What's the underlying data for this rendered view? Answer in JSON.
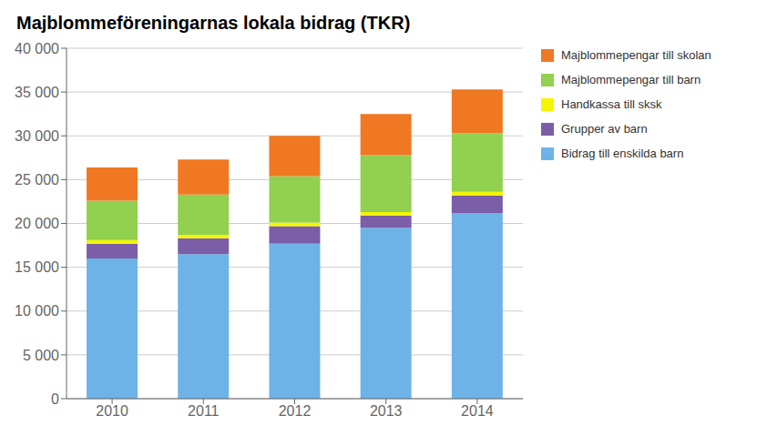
{
  "chart_data": {
    "type": "bar",
    "stacked": true,
    "title": "Majblommeföreningarnas lokala bidrag (TKR)",
    "categories": [
      "2010",
      "2011",
      "2012",
      "2013",
      "2014"
    ],
    "series": [
      {
        "name": "Bidrag till enskilda barn",
        "color": "#6db3e8",
        "values": [
          16000,
          16500,
          17700,
          19500,
          21200
        ]
      },
      {
        "name": "Grupper av barn",
        "color": "#7b5ea7",
        "values": [
          1700,
          1800,
          2000,
          1400,
          2000
        ]
      },
      {
        "name": "Handkassa till sksk",
        "color": "#f5f500",
        "values": [
          400,
          400,
          400,
          400,
          400
        ]
      },
      {
        "name": "Majblommepengar till barn",
        "color": "#92d050",
        "values": [
          4500,
          4600,
          5300,
          6500,
          6700
        ]
      },
      {
        "name": "Majblommepengar till skolan",
        "color": "#f07823",
        "values": [
          3800,
          4000,
          4600,
          4700,
          5000
        ]
      }
    ],
    "ylim": [
      0,
      40000
    ],
    "yticks": [
      0,
      {
        "value": 5000,
        "label": "5 000"
      },
      {
        "value": 10000,
        "label": "10 000"
      },
      {
        "value": 15000,
        "label": "15 000"
      },
      {
        "value": 20000,
        "label": "20 000"
      },
      {
        "value": 25000,
        "label": "25 000"
      },
      {
        "value": 30000,
        "label": "30 000"
      },
      {
        "value": 35000,
        "label": "35 000"
      },
      {
        "value": 40000,
        "label": "40 000"
      }
    ],
    "grid": true,
    "legend": "right"
  }
}
